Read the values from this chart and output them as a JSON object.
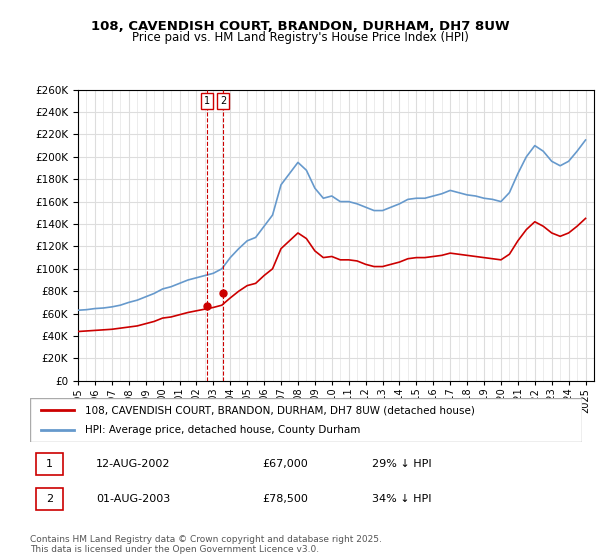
{
  "title": "108, CAVENDISH COURT, BRANDON, DURHAM, DH7 8UW",
  "subtitle": "Price paid vs. HM Land Registry's House Price Index (HPI)",
  "legend_line1": "108, CAVENDISH COURT, BRANDON, DURHAM, DH7 8UW (detached house)",
  "legend_line2": "HPI: Average price, detached house, County Durham",
  "transactions": [
    {
      "num": 1,
      "date": "12-AUG-2002",
      "price": "£67,000",
      "hpi": "29% ↓ HPI"
    },
    {
      "num": 2,
      "date": "01-AUG-2003",
      "price": "£78,500",
      "hpi": "34% ↓ HPI"
    }
  ],
  "footnote": "Contains HM Land Registry data © Crown copyright and database right 2025.\nThis data is licensed under the Open Government Licence v3.0.",
  "red_color": "#cc0000",
  "blue_color": "#6699cc",
  "annotation_color": "#cc0000",
  "grid_color": "#dddddd",
  "background_color": "#ffffff",
  "plot_bg_color": "#ffffff",
  "ylim": [
    0,
    260000
  ],
  "yticks": [
    0,
    20000,
    40000,
    60000,
    80000,
    100000,
    120000,
    140000,
    160000,
    180000,
    200000,
    220000,
    240000,
    260000
  ],
  "xmin": 1995.0,
  "xmax": 2025.5,
  "transaction_dates": [
    2002.617,
    2003.583
  ],
  "hpi_years": [
    1995.0,
    1995.5,
    1996.0,
    1996.5,
    1997.0,
    1997.5,
    1998.0,
    1998.5,
    1999.0,
    1999.5,
    2000.0,
    2000.5,
    2001.0,
    2001.5,
    2002.0,
    2002.5,
    2003.0,
    2003.5,
    2004.0,
    2004.5,
    2005.0,
    2005.5,
    2006.0,
    2006.5,
    2007.0,
    2007.5,
    2008.0,
    2008.5,
    2009.0,
    2009.5,
    2010.0,
    2010.5,
    2011.0,
    2011.5,
    2012.0,
    2012.5,
    2013.0,
    2013.5,
    2014.0,
    2014.5,
    2015.0,
    2015.5,
    2016.0,
    2016.5,
    2017.0,
    2017.5,
    2018.0,
    2018.5,
    2019.0,
    2019.5,
    2020.0,
    2020.5,
    2021.0,
    2021.5,
    2022.0,
    2022.5,
    2023.0,
    2023.5,
    2024.0,
    2024.5,
    2025.0
  ],
  "hpi_values": [
    63000,
    63500,
    64500,
    65000,
    66000,
    67500,
    70000,
    72000,
    75000,
    78000,
    82000,
    84000,
    87000,
    90000,
    92000,
    94000,
    96000,
    100000,
    110000,
    118000,
    125000,
    128000,
    138000,
    148000,
    175000,
    185000,
    195000,
    188000,
    172000,
    163000,
    165000,
    160000,
    160000,
    158000,
    155000,
    152000,
    152000,
    155000,
    158000,
    162000,
    163000,
    163000,
    165000,
    167000,
    170000,
    168000,
    166000,
    165000,
    163000,
    162000,
    160000,
    168000,
    185000,
    200000,
    210000,
    205000,
    196000,
    192000,
    196000,
    205000,
    215000
  ],
  "red_years": [
    1995.0,
    1995.5,
    1996.0,
    1996.5,
    1997.0,
    1997.5,
    1998.0,
    1998.5,
    1999.0,
    1999.5,
    2000.0,
    2000.5,
    2001.0,
    2001.5,
    2002.0,
    2002.5,
    2003.0,
    2003.5,
    2004.0,
    2004.5,
    2005.0,
    2005.5,
    2006.0,
    2006.5,
    2007.0,
    2007.5,
    2008.0,
    2008.5,
    2009.0,
    2009.5,
    2010.0,
    2010.5,
    2011.0,
    2011.5,
    2012.0,
    2012.5,
    2013.0,
    2013.5,
    2014.0,
    2014.5,
    2015.0,
    2015.5,
    2016.0,
    2016.5,
    2017.0,
    2017.5,
    2018.0,
    2018.5,
    2019.0,
    2019.5,
    2020.0,
    2020.5,
    2021.0,
    2021.5,
    2022.0,
    2022.5,
    2023.0,
    2023.5,
    2024.0,
    2024.5,
    2025.0
  ],
  "red_values": [
    44000,
    44500,
    45000,
    45500,
    46000,
    47000,
    48000,
    49000,
    51000,
    53000,
    56000,
    57000,
    59000,
    61000,
    62500,
    64000,
    65500,
    67500,
    74000,
    80000,
    85000,
    87000,
    94000,
    100000,
    118000,
    125000,
    132000,
    127000,
    116000,
    110000,
    111000,
    108000,
    108000,
    107000,
    104000,
    102000,
    102000,
    104000,
    106000,
    109000,
    110000,
    110000,
    111000,
    112000,
    114000,
    113000,
    112000,
    111000,
    110000,
    109000,
    108000,
    113000,
    125000,
    135000,
    142000,
    138000,
    132000,
    129000,
    132000,
    138000,
    145000
  ]
}
